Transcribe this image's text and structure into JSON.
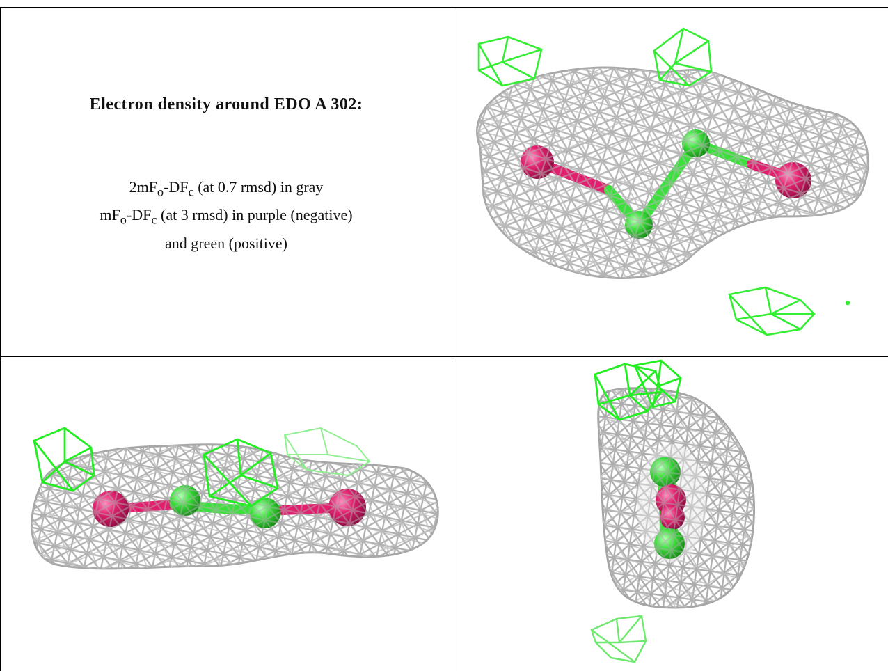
{
  "caption": {
    "title": "Electron density around EDO A 302:",
    "line1_pre": "2mF",
    "line1_sub1": "o",
    "line1_mid": "-DF",
    "line1_sub2": "c",
    "line1_post": " (at 0.7 rmsd) in gray",
    "line2_pre": "mF",
    "line2_sub1": "o",
    "line2_mid": "-DF",
    "line2_sub2": "c",
    "line2_post": " (at 3 rmsd) in purple (negative)",
    "line3": "and green (positive)"
  },
  "colors": {
    "grid_line": "#000000",
    "density_2fofc": "#b8b8b8",
    "density_fofc_positive": "#33ee33",
    "atom_oxygen": "#e0206e",
    "atom_carbon": "#3ce03c"
  }
}
